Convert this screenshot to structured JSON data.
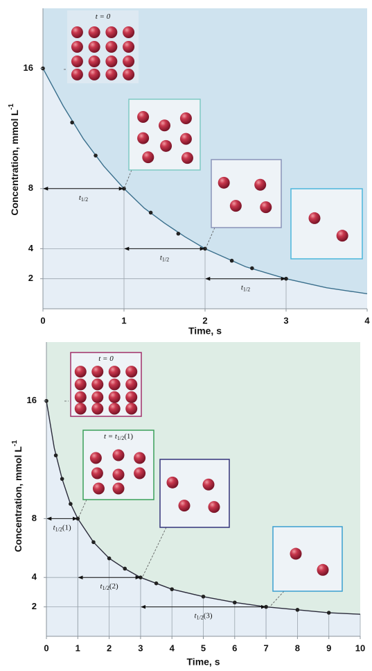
{
  "chart_data": [
    {
      "type": "line",
      "xlabel": "Time, s",
      "ylabel": "Concentration, mmol L",
      "ylabel_sup": "-1",
      "xlim": [
        0,
        4
      ],
      "ylim": [
        0,
        20
      ],
      "xticks": [
        0,
        1,
        2,
        3,
        4
      ],
      "yticks": [
        2,
        4,
        8,
        16
      ],
      "background": "#cfe3ef",
      "area_color": "#e6eef6",
      "droplines": false,
      "series": [
        {
          "color": "#3a6f8c",
          "x": [
            0,
            0.25,
            0.5,
            0.75,
            1,
            1.25,
            1.5,
            1.75,
            2,
            2.25,
            2.5,
            2.75,
            3,
            3.25,
            3.5,
            3.75,
            4
          ],
          "values": [
            16,
            13.5,
            11.3,
            9.5,
            8,
            6.7,
            5.7,
            4.8,
            4,
            3.4,
            2.8,
            2.4,
            2,
            1.7,
            1.4,
            1.2,
            1
          ]
        },
        {
          "type": "scatter",
          "color": "#222222",
          "x": [
            0,
            0.36,
            0.65,
            1,
            1.33,
            1.67,
            2,
            2.33,
            2.58,
            3
          ],
          "values": [
            16,
            12.4,
            10.2,
            8,
            6.4,
            5,
            4,
            3.2,
            2.7,
            2
          ]
        }
      ],
      "annotations": [
        {
          "label": "t",
          "sub": "1/2",
          "x": [
            0,
            1
          ],
          "y": 8
        },
        {
          "label": "t",
          "sub": "1/2",
          "x": [
            1,
            2
          ],
          "y": 4
        },
        {
          "label": "t",
          "sub": "1/2",
          "x": [
            2,
            3
          ],
          "y": 2
        }
      ],
      "insets": [
        {
          "label": "t = 0"
        }
      ]
    },
    {
      "type": "line",
      "xlabel": "Time, s",
      "ylabel": "Concentration, mmol L",
      "ylabel_sup": "-1",
      "xlim": [
        0,
        10
      ],
      "ylim": [
        0,
        20
      ],
      "xticks": [
        0,
        1,
        2,
        3,
        4,
        5,
        6,
        7,
        8,
        9,
        10
      ],
      "yticks": [
        2,
        4,
        8,
        16
      ],
      "background": "#deede5",
      "area_color": "#e6eef6",
      "droplines": true,
      "series": [
        {
          "color": "#2a2a3a",
          "x": [
            0,
            0.25,
            0.5,
            0.75,
            1,
            1.5,
            2,
            2.5,
            3,
            3.5,
            4,
            5,
            6,
            7,
            8,
            9,
            10
          ],
          "values": [
            16,
            12.8,
            10.7,
            9.1,
            8,
            6.4,
            5.3,
            4.6,
            4,
            3.6,
            3.2,
            2.7,
            2.3,
            2,
            1.8,
            1.6,
            1.5
          ]
        },
        {
          "type": "scatter",
          "color": "#222222",
          "x": [
            0,
            0.3,
            0.5,
            0.77,
            1,
            1.5,
            2,
            2.5,
            3,
            3.5,
            4,
            5,
            6,
            7,
            8,
            9
          ],
          "values": [
            16,
            12.3,
            10.7,
            9,
            8,
            6.4,
            5.3,
            4.6,
            4,
            3.6,
            3.2,
            2.7,
            2.3,
            2,
            1.8,
            1.6
          ]
        }
      ],
      "annotations": [
        {
          "label": "t",
          "sub": "1/2",
          "suffix": "(1)",
          "x": [
            0,
            1
          ],
          "y": 8
        },
        {
          "label": "t",
          "sub": "1/2",
          "suffix": "(2)",
          "x": [
            1,
            3
          ],
          "y": 4
        },
        {
          "label": "t",
          "sub": "1/2",
          "suffix": "(3)",
          "x": [
            3,
            7
          ],
          "y": 2
        }
      ],
      "insets": [
        {
          "label": "t = 0"
        },
        {
          "label": "t = t",
          "sub": "1/2",
          "suffix": "(1)"
        }
      ]
    }
  ]
}
